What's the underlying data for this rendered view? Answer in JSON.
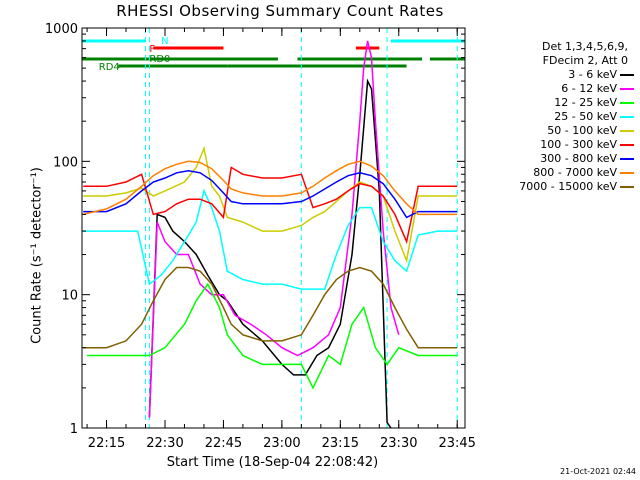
{
  "title": "RHESSI Observing Summary Count Rates",
  "legend_header": [
    "Det 1,3,4,5,6,9,",
    "FDecim 2, Att 0"
  ],
  "footer_date": "21-Oct-2021 02:44",
  "colors": {
    "background": "#ffffff",
    "axes": "#000000",
    "flag_N": "#00ffff",
    "flag_F": "#ff0000",
    "flag_RD0": "#ff0000",
    "flag_RD4": "#008000"
  },
  "flags": {
    "N_label": "N",
    "F_label": "F",
    "RD0_label": "RD0",
    "RD4_label": "RD4"
  },
  "chart_data": {
    "type": "line",
    "title": "RHESSI Observing Summary Count Rates",
    "xlabel": "Start Time (18-Sep-04 22:08:42)",
    "ylabel": "Count Rate (s⁻¹ detector⁻¹)",
    "y_scale": "log",
    "ylim": [
      1,
      1000
    ],
    "xlim": [
      "22:08:42",
      "23:47:00"
    ],
    "x_ticks": [
      "22:15",
      "22:30",
      "22:45",
      "23:00",
      "23:15",
      "23:30",
      "23:45"
    ],
    "y_ticks": [
      "1",
      "10",
      "100",
      "1000"
    ],
    "grid": false,
    "legend_position": "right",
    "series": [
      {
        "name": "3 - 6 keV",
        "color": "#000000",
        "x": [
          "22:26",
          "22:28",
          "22:30",
          "22:32",
          "22:35",
          "22:38",
          "22:41",
          "22:44",
          "22:46",
          "22:50",
          "22:55",
          "23:00",
          "23:03",
          "23:06",
          "23:09",
          "23:12",
          "23:15",
          "23:18",
          "23:20",
          "23:22",
          "23:23",
          "23:25",
          "23:27",
          "23:28"
        ],
        "y": [
          1.2,
          40,
          38,
          30,
          25,
          20,
          14,
          10,
          9,
          6,
          4.5,
          3,
          2.5,
          2.5,
          3.5,
          4,
          6,
          20,
          80,
          400,
          350,
          60,
          1.1,
          1
        ]
      },
      {
        "name": "6 - 12 keV",
        "color": "#ff00ff",
        "x": [
          "22:26",
          "22:28",
          "22:30",
          "22:33",
          "22:36",
          "22:39",
          "22:42",
          "22:45",
          "22:48",
          "22:52",
          "22:56",
          "23:00",
          "23:04",
          "23:08",
          "23:12",
          "23:15",
          "23:18",
          "23:20",
          "23:21",
          "23:22",
          "23:23",
          "23:24",
          "23:26",
          "23:28",
          "23:30"
        ],
        "y": [
          1.2,
          35,
          25,
          20,
          20,
          12,
          10,
          10,
          7,
          6,
          5,
          4,
          3.5,
          4,
          5,
          8,
          40,
          200,
          500,
          800,
          600,
          200,
          30,
          8,
          5
        ]
      },
      {
        "name": "12 - 25 keV",
        "color": "#00ff00",
        "x": [
          "22:10",
          "22:15",
          "22:20",
          "22:26",
          "22:30",
          "22:35",
          "22:38",
          "22:41",
          "22:44",
          "22:46",
          "22:50",
          "22:55",
          "23:00",
          "23:05",
          "23:08",
          "23:12",
          "23:15",
          "23:18",
          "23:21",
          "23:24",
          "23:27",
          "23:30",
          "23:35",
          "23:40",
          "23:45"
        ],
        "y": [
          3.5,
          3.5,
          3.5,
          3.5,
          4,
          6,
          9,
          12,
          8,
          5,
          3.5,
          3,
          3,
          3,
          2,
          3.5,
          3,
          6,
          8,
          4,
          3,
          4,
          3.5,
          3.5,
          3.5
        ]
      },
      {
        "name": "25 - 50 keV",
        "color": "#00ffff",
        "x": [
          "22:09",
          "22:15",
          "22:20",
          "22:23",
          "22:26",
          "22:29",
          "22:32",
          "22:35",
          "22:38",
          "22:40",
          "22:42",
          "22:44",
          "22:46",
          "22:50",
          "22:55",
          "23:00",
          "23:05",
          "23:08",
          "23:11",
          "23:14",
          "23:17",
          "23:20",
          "23:23",
          "23:26",
          "23:29",
          "23:32",
          "23:35",
          "23:40",
          "23:45"
        ],
        "y": [
          30,
          30,
          30,
          30,
          12,
          14,
          18,
          25,
          35,
          60,
          45,
          30,
          15,
          13,
          12,
          12,
          11,
          11,
          11,
          20,
          33,
          45,
          45,
          25,
          18,
          15,
          28,
          30,
          30
        ]
      },
      {
        "name": "50 - 100 keV",
        "color": "#cccc00",
        "x": [
          "22:09",
          "22:15",
          "22:20",
          "22:24",
          "22:27",
          "22:30",
          "22:35",
          "22:38",
          "22:40",
          "22:42",
          "22:44",
          "22:46",
          "22:50",
          "22:55",
          "23:00",
          "23:05",
          "23:08",
          "23:11",
          "23:14",
          "23:17",
          "23:20",
          "23:23",
          "23:26",
          "23:29",
          "23:32",
          "23:35",
          "23:40",
          "23:45"
        ],
        "y": [
          55,
          55,
          58,
          63,
          55,
          60,
          70,
          90,
          125,
          65,
          55,
          38,
          35,
          30,
          30,
          33,
          38,
          42,
          50,
          60,
          70,
          65,
          55,
          30,
          18,
          55,
          55,
          55
        ]
      },
      {
        "name": "100 - 300 keV",
        "color": "#ff0000",
        "x": [
          "22:09",
          "22:15",
          "22:20",
          "22:24",
          "22:27",
          "22:30",
          "22:33",
          "22:36",
          "22:39",
          "22:42",
          "22:45",
          "22:47",
          "22:50",
          "22:55",
          "23:00",
          "23:05",
          "23:08",
          "23:11",
          "23:14",
          "23:17",
          "23:20",
          "23:23",
          "23:26",
          "23:29",
          "23:32",
          "23:35",
          "23:40",
          "23:45"
        ],
        "y": [
          65,
          65,
          70,
          80,
          40,
          42,
          48,
          52,
          52,
          48,
          38,
          90,
          80,
          75,
          75,
          80,
          45,
          48,
          52,
          60,
          68,
          65,
          55,
          40,
          25,
          65,
          65,
          65
        ]
      },
      {
        "name": "300 - 800 keV",
        "color": "#0000ff",
        "x": [
          "22:09",
          "22:15",
          "22:20",
          "22:24",
          "22:27",
          "22:30",
          "22:33",
          "22:36",
          "22:39",
          "22:42",
          "22:45",
          "22:47",
          "22:50",
          "22:55",
          "23:00",
          "23:05",
          "23:08",
          "23:11",
          "23:14",
          "23:17",
          "23:20",
          "23:23",
          "23:26",
          "23:29",
          "23:32",
          "23:35",
          "23:40",
          "23:45"
        ],
        "y": [
          42,
          42,
          48,
          60,
          70,
          75,
          82,
          85,
          82,
          72,
          58,
          50,
          48,
          48,
          48,
          50,
          55,
          62,
          70,
          78,
          82,
          78,
          68,
          52,
          38,
          42,
          42,
          42
        ]
      },
      {
        "name": "800 - 7000 keV",
        "color": "#ff8000",
        "x": [
          "22:09",
          "22:15",
          "22:20",
          "22:24",
          "22:27",
          "22:30",
          "22:33",
          "22:36",
          "22:39",
          "22:42",
          "22:45",
          "22:47",
          "22:50",
          "22:55",
          "23:00",
          "23:05",
          "23:08",
          "23:11",
          "23:14",
          "23:17",
          "23:20",
          "23:23",
          "23:26",
          "23:29",
          "23:32",
          "23:35",
          "23:40",
          "23:45"
        ],
        "y": [
          40,
          44,
          52,
          65,
          78,
          88,
          95,
          100,
          98,
          88,
          72,
          62,
          58,
          55,
          55,
          58,
          65,
          75,
          85,
          95,
          100,
          92,
          78,
          60,
          48,
          40,
          40,
          40
        ]
      },
      {
        "name": "7000 - 15000 keV",
        "color": "#806000",
        "x": [
          "22:09",
          "22:15",
          "22:20",
          "22:24",
          "22:27",
          "22:30",
          "22:33",
          "22:36",
          "22:39",
          "22:42",
          "22:45",
          "22:47",
          "22:50",
          "22:55",
          "23:00",
          "23:05",
          "23:08",
          "23:11",
          "23:14",
          "23:17",
          "23:20",
          "23:23",
          "23:26",
          "23:29",
          "23:32",
          "23:35",
          "23:40",
          "23:45"
        ],
        "y": [
          4,
          4,
          4.5,
          6,
          9,
          13,
          16,
          16,
          15,
          12,
          8,
          6,
          5,
          4.5,
          4.5,
          5,
          7,
          10,
          13,
          15,
          16,
          15,
          12,
          8,
          5.5,
          4,
          4,
          4
        ]
      }
    ]
  }
}
